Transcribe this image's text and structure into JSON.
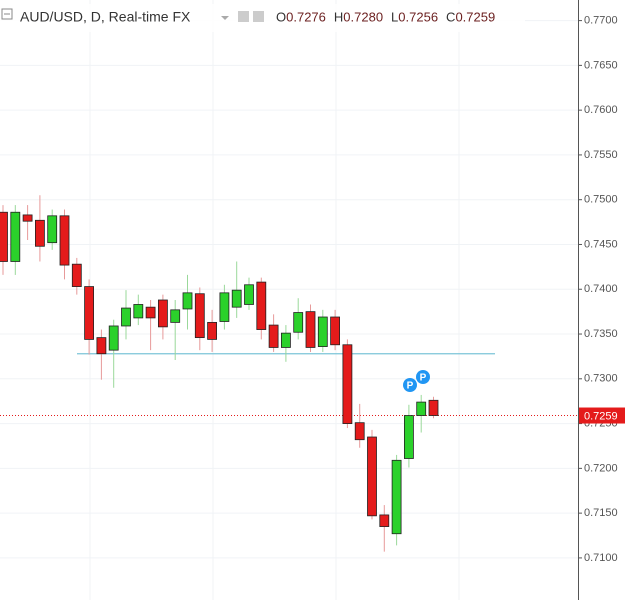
{
  "chart_data": {
    "type": "candlestick",
    "title": "AUD/USD, D, Real-time FX",
    "legend_ohlc": [
      {
        "key": "O",
        "value": "0.7276"
      },
      {
        "key": "H",
        "value": "0.7280"
      },
      {
        "key": "L",
        "value": "0.7256"
      },
      {
        "key": "C",
        "value": "0.7259"
      }
    ],
    "open": [
      0.7486,
      0.7431,
      0.7483,
      0.7477,
      0.7452,
      0.7482,
      0.7428,
      0.7403,
      0.7346,
      0.7332,
      0.7359,
      0.7368,
      0.738,
      0.7388,
      0.7363,
      0.7378,
      0.7395,
      0.7363,
      0.7364,
      0.738,
      0.7383,
      0.7408,
      0.736,
      0.7335,
      0.7352,
      0.7375,
      0.7336,
      0.7369,
      0.7338,
      0.7251,
      0.7235,
      0.7148,
      0.7127,
      0.7211,
      0.7259,
      0.7276
    ],
    "high": [
      0.7494,
      0.7494,
      0.7494,
      0.7505,
      0.7489,
      0.7489,
      0.7435,
      0.7411,
      0.7355,
      0.7366,
      0.7399,
      0.7394,
      0.7388,
      0.7394,
      0.7388,
      0.7416,
      0.7402,
      0.7377,
      0.7405,
      0.7431,
      0.7413,
      0.7413,
      0.7372,
      0.736,
      0.739,
      0.7383,
      0.7377,
      0.7377,
      0.7344,
      0.7272,
      0.7243,
      0.7159,
      0.7215,
      0.7271,
      0.7282,
      0.728
    ],
    "low": [
      0.7416,
      0.7416,
      0.7455,
      0.7431,
      0.7444,
      0.7411,
      0.7394,
      0.7327,
      0.7299,
      0.729,
      0.7344,
      0.736,
      0.7332,
      0.7344,
      0.7321,
      0.7355,
      0.7332,
      0.733,
      0.7355,
      0.7368,
      0.7377,
      0.7344,
      0.733,
      0.7319,
      0.7344,
      0.733,
      0.733,
      0.7332,
      0.7245,
      0.7223,
      0.7143,
      0.7107,
      0.7114,
      0.7201,
      0.724,
      0.7256
    ],
    "close": [
      0.7431,
      0.7486,
      0.7476,
      0.7448,
      0.7482,
      0.7427,
      0.7403,
      0.7344,
      0.7328,
      0.7359,
      0.7379,
      0.7383,
      0.7368,
      0.7358,
      0.7377,
      0.7396,
      0.7346,
      0.7344,
      0.7396,
      0.7399,
      0.7405,
      0.7355,
      0.7335,
      0.7351,
      0.7374,
      0.7335,
      0.7369,
      0.7338,
      0.725,
      0.7232,
      0.7147,
      0.7135,
      0.7209,
      0.7259,
      0.7274,
      0.7259
    ],
    "up_color": "#2bd12b",
    "down_color": "#e41b1b",
    "ylim": [
      0.7053,
      0.7723
    ],
    "yticks": [
      {
        "value": 0.77,
        "label": "0.7700"
      },
      {
        "value": 0.765,
        "label": "0.7650"
      },
      {
        "value": 0.76,
        "label": "0.7600"
      },
      {
        "value": 0.755,
        "label": "0.7550"
      },
      {
        "value": 0.75,
        "label": "0.7500"
      },
      {
        "value": 0.745,
        "label": "0.7450"
      },
      {
        "value": 0.74,
        "label": "0.7400"
      },
      {
        "value": 0.735,
        "label": "0.7350"
      },
      {
        "value": 0.73,
        "label": "0.7300"
      },
      {
        "value": 0.725,
        "label": "0.7250"
      },
      {
        "value": 0.72,
        "label": "0.7200"
      },
      {
        "value": 0.715,
        "label": "0.7150"
      },
      {
        "value": 0.71,
        "label": "0.7100"
      }
    ],
    "grid": true,
    "last_price": 0.7259,
    "last_price_color": "#e41b1b",
    "level_line": 0.7328,
    "level_line_color": "#7cc4d8",
    "markers": [
      {
        "label": "P"
      },
      {
        "label": "P"
      }
    ]
  }
}
